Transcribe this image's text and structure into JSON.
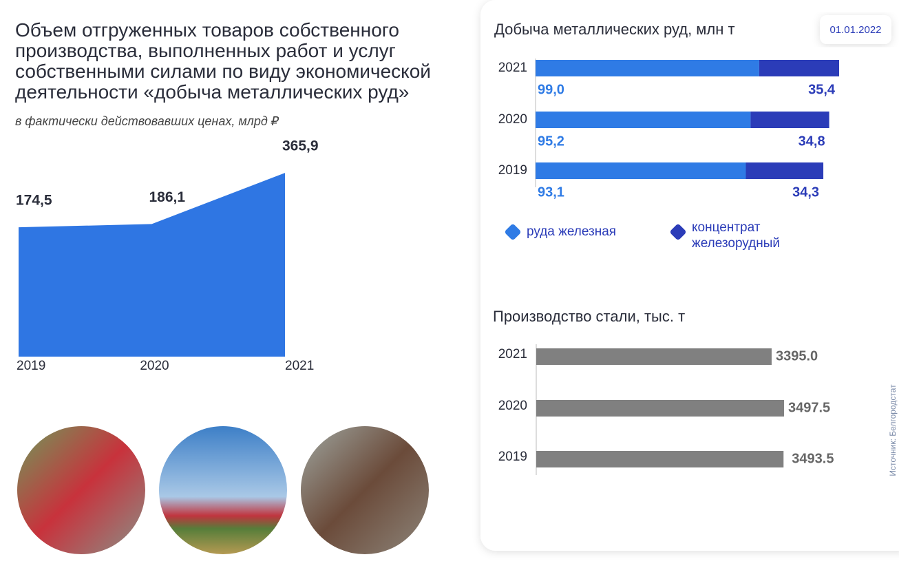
{
  "chart_data": [
    {
      "type": "area",
      "title": "Объем отгруженных товаров собственного производства, выполненных работ и услуг собственными силами по виду экономической деятельности «добыча металлических руд»",
      "subtitle": "в фактически действовавших ценах, млрд ₽",
      "categories": [
        "2019",
        "2020",
        "2021"
      ],
      "values": [
        174.5,
        186.1,
        365.9
      ],
      "value_labels": [
        "174,5",
        "186,1",
        "365,9"
      ],
      "color": "#2f76e3",
      "ylim": [
        -280,
        400
      ]
    },
    {
      "type": "stacked-hbar",
      "title": "Добыча металлических руд, млн т",
      "date": "01.01.2022",
      "categories": [
        "2021",
        "2020",
        "2019"
      ],
      "series": [
        {
          "name": "руда железная",
          "color": "#2f7be5",
          "values": [
            99.0,
            95.2,
            93.1
          ],
          "value_labels": [
            "99,0",
            "95,2",
            "93,1"
          ]
        },
        {
          "name": "концентрат железорудный",
          "color": "#2b3cb8",
          "values": [
            35.4,
            34.8,
            34.3
          ],
          "value_labels": [
            "35,4",
            "34,8",
            "34,3"
          ]
        }
      ],
      "xlim": [
        0,
        135
      ]
    },
    {
      "type": "hbar",
      "title": "Производство стали, тыс. т",
      "categories": [
        "2021",
        "2020",
        "2019"
      ],
      "values": [
        3395.0,
        3497.5,
        3493.5
      ],
      "value_labels": [
        "3395.0",
        "3497.5",
        "3493.5"
      ],
      "color": "#808080",
      "xlim": [
        1450,
        3600
      ]
    }
  ],
  "source": "Источник: Белгородстат"
}
